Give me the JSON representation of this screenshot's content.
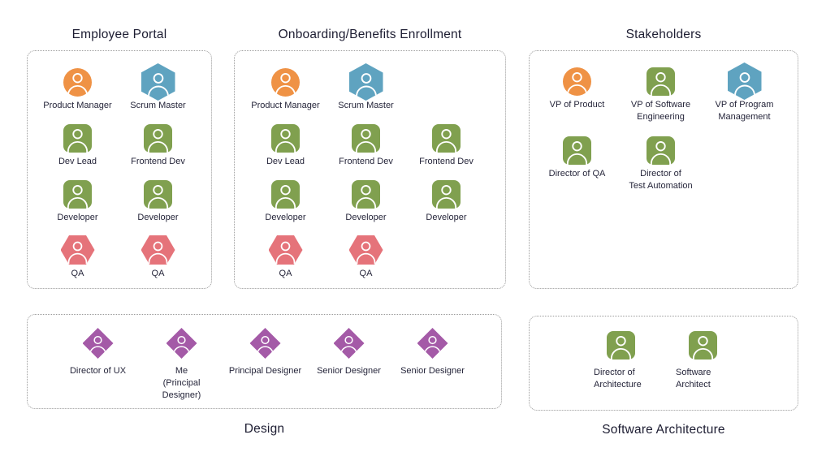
{
  "palette": {
    "orange": "#EF9245",
    "blue": "#5FA3C0",
    "green": "#80A04F",
    "salmon": "#E5737A",
    "purple": "#A45AA7",
    "border_gray": "#9A9A9A",
    "title_text": "#1D1D32",
    "label_text": "#25253A"
  },
  "icon_semantics": {
    "circle": "circle-person-icon",
    "square": "square-person-icon",
    "hexagon-pointy": "hexagon-person-icon",
    "hexagon-flat": "hexagon-person-icon",
    "diamond": "diamond-person-icon"
  },
  "sections": [
    {
      "id": "employee-portal",
      "title": "Employee Portal",
      "title_position": "top",
      "rows": [
        [
          {
            "role": "Product Manager",
            "shape": "circle",
            "color": "orange"
          },
          {
            "role": "Scrum Master",
            "shape": "hexagon-pointy",
            "color": "blue"
          }
        ],
        [
          {
            "role": "Dev Lead",
            "shape": "square",
            "color": "green"
          },
          {
            "role": "Frontend Dev",
            "shape": "square",
            "color": "green"
          }
        ],
        [
          {
            "role": "Developer",
            "shape": "square",
            "color": "green"
          },
          {
            "role": "Developer",
            "shape": "square",
            "color": "green"
          }
        ],
        [
          {
            "role": "QA",
            "shape": "hexagon-flat",
            "color": "salmon"
          },
          {
            "role": "QA",
            "shape": "hexagon-flat",
            "color": "salmon"
          }
        ]
      ]
    },
    {
      "id": "onboarding",
      "title": "Onboarding/Benefits Enrollment",
      "title_position": "top",
      "rows": [
        [
          {
            "role": "Product Manager",
            "shape": "circle",
            "color": "orange"
          },
          {
            "role": "Scrum Master",
            "shape": "hexagon-pointy",
            "color": "blue"
          }
        ],
        [
          {
            "role": "Dev Lead",
            "shape": "square",
            "color": "green"
          },
          {
            "role": "Frontend Dev",
            "shape": "square",
            "color": "green"
          },
          {
            "role": "Frontend Dev",
            "shape": "square",
            "color": "green"
          }
        ],
        [
          {
            "role": "Developer",
            "shape": "square",
            "color": "green"
          },
          {
            "role": "Developer",
            "shape": "square",
            "color": "green"
          },
          {
            "role": "Developer",
            "shape": "square",
            "color": "green"
          }
        ],
        [
          {
            "role": "QA",
            "shape": "hexagon-flat",
            "color": "salmon"
          },
          {
            "role": "QA",
            "shape": "hexagon-flat",
            "color": "salmon"
          }
        ]
      ]
    },
    {
      "id": "stakeholders",
      "title": "Stakeholders",
      "title_position": "top",
      "rows": [
        [
          {
            "role": "VP of Product",
            "shape": "circle",
            "color": "orange"
          },
          {
            "role": "VP of Software\nEngineering",
            "shape": "square",
            "color": "green"
          },
          {
            "role": "VP of Program\nManagement",
            "shape": "hexagon-pointy",
            "color": "blue"
          }
        ],
        [
          {
            "role": "Director of QA",
            "shape": "square",
            "color": "green"
          },
          {
            "role": "Director of\nTest Automation",
            "shape": "square",
            "color": "green"
          }
        ]
      ]
    },
    {
      "id": "design",
      "title": "Design",
      "title_position": "bottom",
      "rows": [
        [
          {
            "role": "Director of UX",
            "shape": "diamond",
            "color": "purple"
          },
          {
            "role": "Me\n(Principal\nDesigner)",
            "shape": "diamond",
            "color": "purple"
          },
          {
            "role": "Principal Designer",
            "shape": "diamond",
            "color": "purple"
          },
          {
            "role": "Senior Designer",
            "shape": "diamond",
            "color": "purple"
          },
          {
            "role": "Senior Designer",
            "shape": "diamond",
            "color": "purple"
          }
        ]
      ]
    },
    {
      "id": "software-architecture",
      "title": "Software Architecture",
      "title_position": "bottom",
      "rows": [
        [
          {
            "role": "Director of\nArchitecture",
            "shape": "square",
            "color": "green"
          },
          {
            "role": "Software\nArchitect",
            "shape": "square",
            "color": "green"
          }
        ]
      ]
    }
  ]
}
